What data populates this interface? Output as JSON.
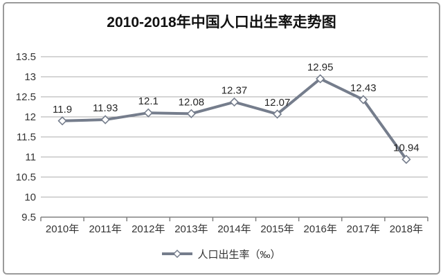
{
  "chart_data": {
    "type": "line",
    "title": "2010-2018年中国人口出生率走势图",
    "categories": [
      "2010年",
      "2011年",
      "2012年",
      "2013年",
      "2014年",
      "2015年",
      "2016年",
      "2017年",
      "2018年"
    ],
    "series": [
      {
        "name": "人口出生率（‰）",
        "values": [
          11.9,
          11.93,
          12.1,
          12.08,
          12.37,
          12.07,
          12.95,
          12.43,
          10.94
        ],
        "labels": [
          "11.9",
          "11.93",
          "12.1",
          "12.08",
          "12.37",
          "12.07",
          "12.95",
          "12.43",
          "10.94"
        ]
      }
    ],
    "ylim": [
      9.5,
      13.5
    ],
    "ytick_step": 0.5,
    "ytick_labels": [
      "9.5",
      "10",
      "10.5",
      "11",
      "11.5",
      "12",
      "12.5",
      "13",
      "13.5"
    ],
    "grid": true,
    "legend_position": "bottom",
    "marker": "diamond",
    "colors": {
      "line": "#757d8c",
      "marker_fill": "#ffffff",
      "grid": "#ababab",
      "axis": "#808080",
      "text": "#333333",
      "data_label": "#262626",
      "title": "#111111",
      "border": "#9a9a9a"
    }
  }
}
